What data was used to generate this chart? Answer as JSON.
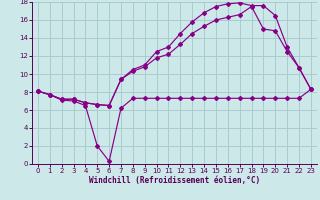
{
  "xlabel": "Windchill (Refroidissement éolien,°C)",
  "background_color": "#cce8e8",
  "line_color": "#880088",
  "grid_color": "#aacccc",
  "xlim": [
    -0.5,
    23.5
  ],
  "ylim": [
    0,
    18
  ],
  "xticks": [
    0,
    1,
    2,
    3,
    4,
    5,
    6,
    7,
    8,
    9,
    10,
    11,
    12,
    13,
    14,
    15,
    16,
    17,
    18,
    19,
    20,
    21,
    22,
    23
  ],
  "yticks": [
    0,
    2,
    4,
    6,
    8,
    10,
    12,
    14,
    16,
    18
  ],
  "line1_x": [
    0,
    1,
    2,
    3,
    4,
    5,
    6,
    7,
    8,
    9,
    10,
    11,
    12,
    13,
    14,
    15,
    16,
    17,
    18,
    19,
    20,
    21,
    22,
    23
  ],
  "line1_y": [
    8.1,
    7.7,
    7.2,
    7.2,
    6.8,
    6.6,
    6.5,
    9.4,
    10.5,
    11.0,
    12.5,
    13.0,
    14.5,
    15.8,
    16.8,
    17.5,
    17.8,
    17.9,
    17.6,
    17.6,
    16.5,
    13.0,
    10.7,
    8.3
  ],
  "line2_x": [
    0,
    1,
    2,
    3,
    4,
    5,
    6,
    7,
    8,
    9,
    10,
    11,
    12,
    13,
    14,
    15,
    16,
    17,
    18,
    19,
    20,
    21,
    22,
    23
  ],
  "line2_y": [
    8.1,
    7.7,
    7.2,
    7.2,
    6.8,
    6.6,
    6.5,
    9.4,
    10.3,
    10.8,
    11.8,
    12.2,
    13.3,
    14.5,
    15.3,
    16.0,
    16.3,
    16.6,
    17.5,
    15.0,
    14.8,
    12.5,
    10.7,
    8.3
  ],
  "line3_x": [
    0,
    1,
    2,
    3,
    4,
    5,
    6,
    7,
    8,
    9,
    10,
    11,
    12,
    13,
    14,
    15,
    16,
    17,
    18,
    19,
    20,
    21,
    22,
    23
  ],
  "line3_y": [
    8.1,
    7.7,
    7.1,
    7.0,
    6.5,
    2.0,
    0.3,
    6.2,
    7.3,
    7.3,
    7.3,
    7.3,
    7.3,
    7.3,
    7.3,
    7.3,
    7.3,
    7.3,
    7.3,
    7.3,
    7.3,
    7.3,
    7.3,
    8.3
  ]
}
